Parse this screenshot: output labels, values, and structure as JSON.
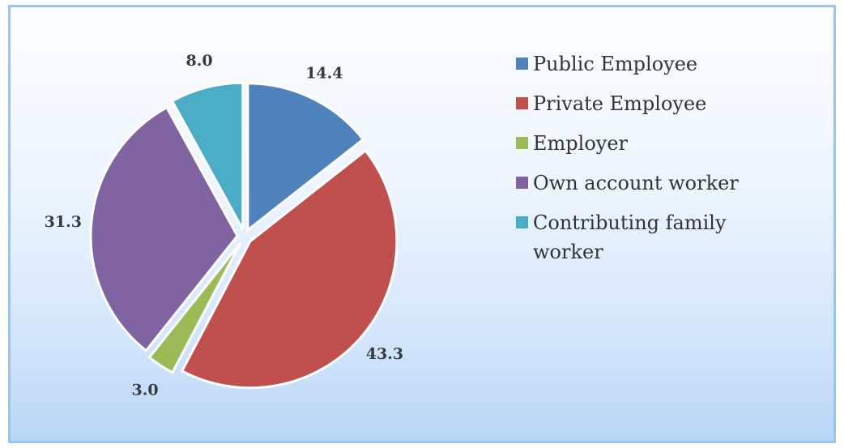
{
  "chart_data": {
    "type": "pie",
    "categories": [
      "Public Employee",
      "Private Employee",
      "Employer",
      "Own account worker",
      "Contributing family worker"
    ],
    "values": [
      14.4,
      43.3,
      3.0,
      31.3,
      8.0
    ],
    "value_labels": [
      "14.4",
      "43.3",
      "3.0",
      "31.3",
      "8.0"
    ],
    "colors": [
      "#4f81bd",
      "#c0504d",
      "#9bbb59",
      "#8064a2",
      "#4bacc6"
    ],
    "legend_position": "right",
    "exploded": true,
    "start_angle": "12 o'clock, clockwise"
  }
}
